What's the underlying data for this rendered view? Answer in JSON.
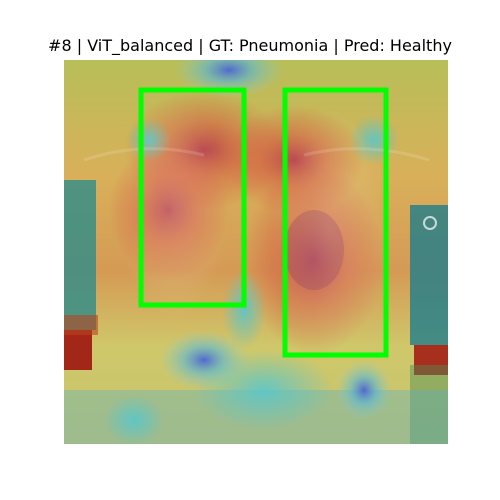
{
  "figure": {
    "title": "#8 | ViT_balanced | GT: Pneumonia | Pred: Healthy",
    "panel": {
      "content": "chest x-ray with attention heatmap overlay",
      "box_color": "#00ff00",
      "box_count": 2
    }
  }
}
